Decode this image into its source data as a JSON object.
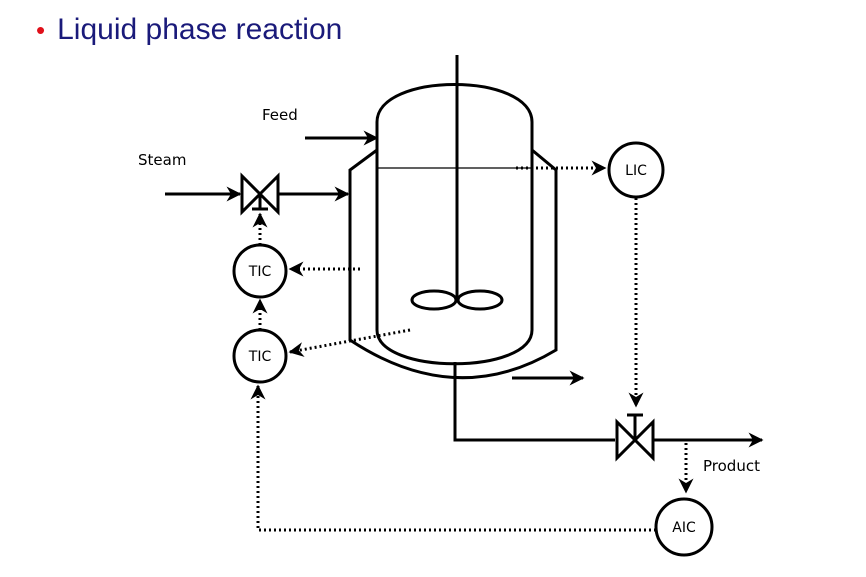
{
  "slide": {
    "title": "Liquid phase reaction"
  },
  "labels": {
    "feed": "Feed",
    "steam": "Steam",
    "product": "Product"
  },
  "controllers": {
    "lic": "LIC",
    "tic_top": "TIC",
    "tic_bottom": "TIC",
    "aic": "AIC"
  },
  "colors": {
    "bullet": "#e0101a",
    "title": "#1a1a7a",
    "line": "#000000"
  }
}
